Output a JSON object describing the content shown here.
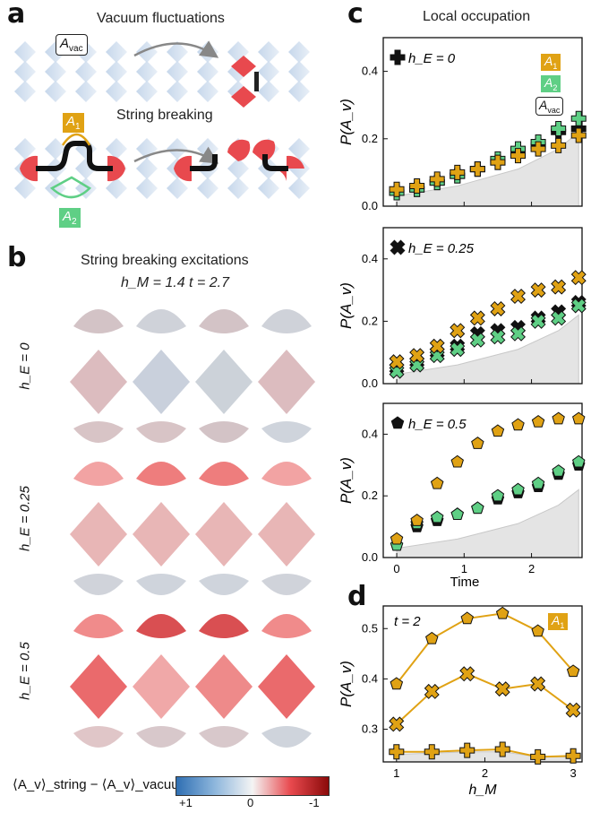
{
  "panels": {
    "a": {
      "label": "a",
      "title_top": "Vacuum fluctuations",
      "title_bottom": "String breaking",
      "tag_vac": "A",
      "tag_vac_sub": "vac",
      "tag_a1": "A",
      "tag_a1_sub": "1",
      "tag_a2": "A",
      "tag_a2_sub": "2"
    },
    "b": {
      "label": "b",
      "title": "String breaking excitations",
      "params": "h_M = 1.4   t = 2.7",
      "rows": [
        {
          "label": "h_E = 0"
        },
        {
          "label": "h_E = 0.25"
        },
        {
          "label": "h_E = 0.5"
        }
      ],
      "colorbar": {
        "label": "⟨A_v⟩_string − ⟨A_v⟩_vacuum",
        "ticks": [
          "+1",
          "0",
          "-1"
        ]
      }
    },
    "c": {
      "label": "c",
      "title": "Local occupation",
      "legend": [
        {
          "name": "A1",
          "color": "#e0a214"
        },
        {
          "name": "A2",
          "color": "#5fcf85"
        },
        {
          "name": "Avac",
          "color": "#ffffff"
        }
      ]
    },
    "d": {
      "label": "d",
      "annotation": "t = 2",
      "legend": "A1"
    }
  },
  "colors": {
    "gold": "#e0a214",
    "green": "#5fcf85",
    "red": "#e8494e",
    "shade": "#e4e4e4",
    "lattice": "#b8cde6"
  },
  "chart_data": [
    {
      "type": "scatter",
      "panel": "c-top",
      "annotation": "h_E = 0",
      "xlabel": "",
      "ylabel": "P(A_v)",
      "xlim": [
        -0.2,
        2.75
      ],
      "ylim": [
        0,
        0.5
      ],
      "yticks": [
        0,
        0.2,
        0.4
      ],
      "x": [
        0,
        0.3,
        0.6,
        0.9,
        1.2,
        1.5,
        1.8,
        2.1,
        2.4,
        2.7
      ],
      "series": [
        {
          "name": "A1",
          "values": [
            0.05,
            0.06,
            0.08,
            0.1,
            0.11,
            0.13,
            0.15,
            0.17,
            0.18,
            0.21
          ]
        },
        {
          "name": "A2",
          "values": [
            0.04,
            0.05,
            0.07,
            0.09,
            0.11,
            0.14,
            0.17,
            0.19,
            0.23,
            0.26
          ]
        },
        {
          "name": "Avac",
          "values": [
            0.04,
            0.05,
            0.07,
            0.09,
            0.11,
            0.13,
            0.16,
            0.18,
            0.22,
            0.23
          ]
        }
      ],
      "shade": {
        "x": [
          0,
          0.9,
          1.8,
          2.4,
          2.7
        ],
        "values": [
          0.03,
          0.06,
          0.11,
          0.17,
          0.22
        ]
      }
    },
    {
      "type": "scatter",
      "panel": "c-middle",
      "annotation": "h_E = 0.25",
      "xlabel": "",
      "ylabel": "P(A_v)",
      "xlim": [
        -0.2,
        2.75
      ],
      "ylim": [
        0,
        0.5
      ],
      "yticks": [
        0,
        0.2,
        0.4
      ],
      "x": [
        0,
        0.3,
        0.6,
        0.9,
        1.2,
        1.5,
        1.8,
        2.1,
        2.4,
        2.7
      ],
      "series": [
        {
          "name": "A1",
          "values": [
            0.07,
            0.09,
            0.12,
            0.17,
            0.21,
            0.24,
            0.28,
            0.3,
            0.31,
            0.34
          ]
        },
        {
          "name": "A2",
          "values": [
            0.04,
            0.06,
            0.09,
            0.11,
            0.14,
            0.15,
            0.16,
            0.2,
            0.21,
            0.25
          ]
        },
        {
          "name": "Avac",
          "values": [
            0.05,
            0.07,
            0.1,
            0.12,
            0.16,
            0.17,
            0.18,
            0.21,
            0.23,
            0.26
          ]
        }
      ],
      "shade": {
        "x": [
          0,
          0.9,
          1.8,
          2.4,
          2.7
        ],
        "values": [
          0.03,
          0.06,
          0.11,
          0.17,
          0.22
        ]
      }
    },
    {
      "type": "scatter",
      "panel": "c-bottom",
      "annotation": "h_E = 0.5",
      "xlabel": "Time",
      "ylabel": "P(A_v)",
      "xlim": [
        -0.2,
        2.75
      ],
      "ylim": [
        0,
        0.5
      ],
      "yticks": [
        0,
        0.2,
        0.4
      ],
      "xticks": [
        0,
        1,
        2
      ],
      "x": [
        0,
        0.3,
        0.6,
        0.9,
        1.2,
        1.5,
        1.8,
        2.1,
        2.4,
        2.7
      ],
      "series": [
        {
          "name": "A1",
          "values": [
            0.06,
            0.12,
            0.24,
            0.31,
            0.37,
            0.41,
            0.43,
            0.44,
            0.45,
            0.45
          ]
        },
        {
          "name": "A2",
          "values": [
            0.04,
            0.11,
            0.13,
            0.14,
            0.16,
            0.2,
            0.22,
            0.24,
            0.28,
            0.31
          ]
        },
        {
          "name": "Avac",
          "values": [
            0.04,
            0.1,
            0.12,
            0.14,
            0.16,
            0.19,
            0.21,
            0.23,
            0.27,
            0.3
          ]
        }
      ],
      "shade": {
        "x": [
          0,
          0.9,
          1.8,
          2.4,
          2.7
        ],
        "values": [
          0.03,
          0.06,
          0.11,
          0.17,
          0.22
        ]
      }
    },
    {
      "type": "line",
      "panel": "d",
      "annotation": "t = 2",
      "xlabel": "h_M",
      "ylabel": "P(A_v)",
      "xlim": [
        0.85,
        3.1
      ],
      "ylim": [
        0.235,
        0.545
      ],
      "yticks": [
        0.3,
        0.4,
        0.5
      ],
      "xticks": [
        1,
        2,
        3
      ],
      "x": [
        1.0,
        1.4,
        1.8,
        2.2,
        2.6,
        3.0
      ],
      "series": [
        {
          "name": "h_E = 0.5",
          "marker": "pentagon",
          "values": [
            0.39,
            0.48,
            0.52,
            0.53,
            0.495,
            0.415
          ]
        },
        {
          "name": "h_E = 0.25",
          "marker": "cross",
          "values": [
            0.31,
            0.375,
            0.41,
            0.38,
            0.39,
            0.338
          ]
        },
        {
          "name": "h_E = 0",
          "marker": "plus",
          "values": [
            0.255,
            0.255,
            0.258,
            0.26,
            0.245,
            0.247
          ]
        }
      ],
      "shade": {
        "x": [
          1.0,
          1.8,
          2.2,
          2.6,
          3.0
        ],
        "values": [
          0.25,
          0.255,
          0.255,
          0.245,
          0.245
        ]
      }
    }
  ]
}
